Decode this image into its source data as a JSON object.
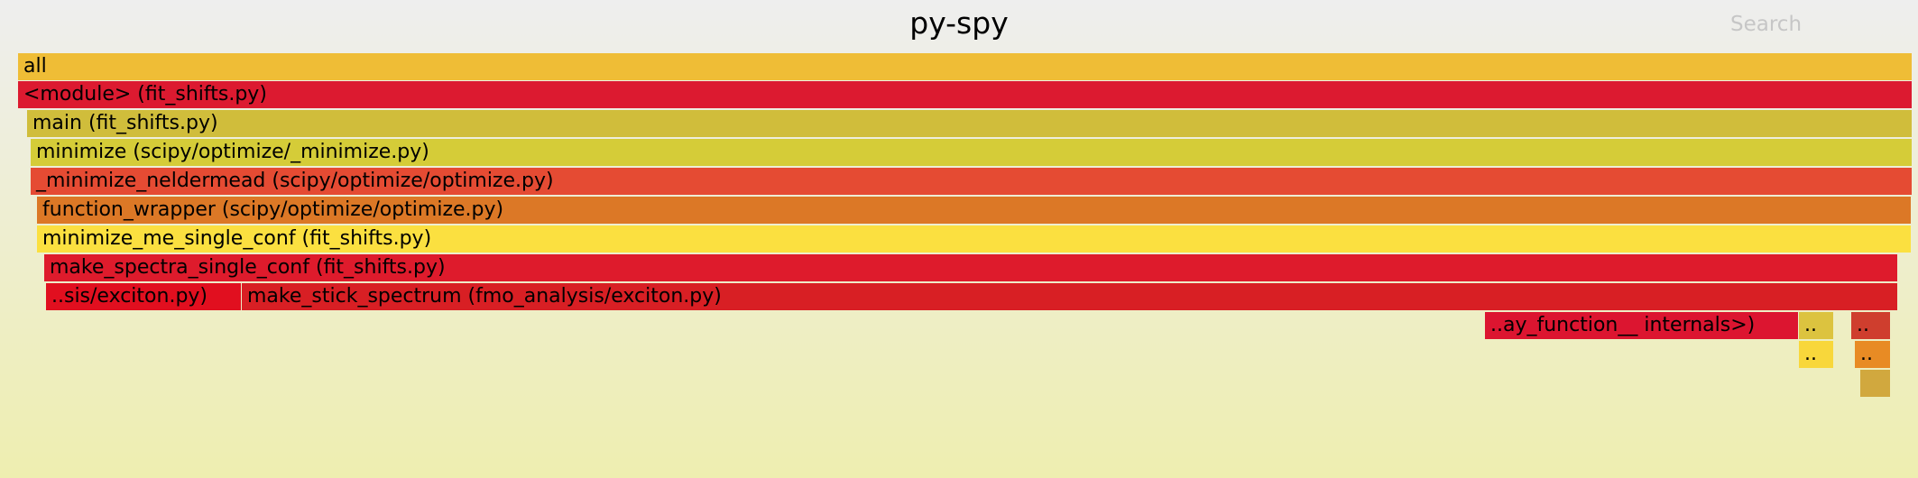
{
  "header": {
    "title": "py-spy",
    "search_label": "Search"
  },
  "frames": [
    {
      "label": "all",
      "color": "#efbd36"
    },
    {
      "label": "<module> (fit_shifts.py)",
      "color": "#dc1a30"
    },
    {
      "label": "main (fit_shifts.py)",
      "color": "#d0bd3b"
    },
    {
      "label": "minimize (scipy/optimize/_minimize.py)",
      "color": "#d5cc38"
    },
    {
      "label": "_minimize_neldermead (scipy/optimize/optimize.py)",
      "color": "#e54b33"
    },
    {
      "label": "function_wrapper (scipy/optimize/optimize.py)",
      "color": "#dc7826"
    },
    {
      "label": "minimize_me_single_conf (fit_shifts.py)",
      "color": "#fbe040"
    },
    {
      "label": "make_spectra_single_conf (fit_shifts.py)",
      "color": "#de1b2c"
    },
    {
      "label": "..sis/exciton.py)",
      "color": "#e10f1f"
    },
    {
      "label": "make_stick_spectrum (fmo_analysis/exciton.py)",
      "color": "#d81f24"
    },
    {
      "label": "..ay_function__ internals>)",
      "color": "#dc1530"
    },
    {
      "label": "..",
      "color": "#dcc33f"
    },
    {
      "label": "..",
      "color": "#cf3e2e"
    },
    {
      "label": "..",
      "color": "#f8d73b"
    },
    {
      "label": "..",
      "color": "#e88b24"
    },
    {
      "label": "",
      "color": "#d1a83e"
    }
  ]
}
